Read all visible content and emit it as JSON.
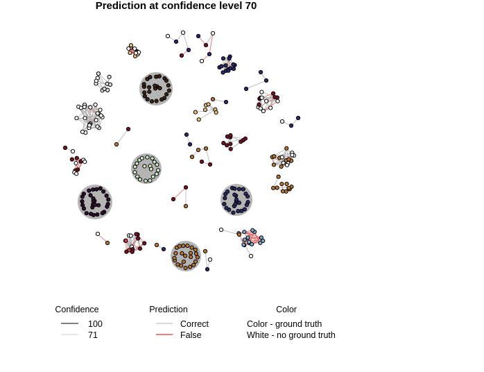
{
  "title": "Prediction at confidence level 70",
  "legend": {
    "confidence": {
      "heading": "Confidence",
      "items": [
        {
          "label": "100",
          "color": "#000000"
        },
        {
          "label": "71",
          "color": "#cccccc"
        }
      ]
    },
    "prediction": {
      "heading": "Prediction",
      "items": [
        {
          "label": "Correct",
          "color": "#b0b0b0"
        },
        {
          "label": "False",
          "color": "#cc0000"
        }
      ]
    },
    "color": {
      "heading": "Color",
      "items": [
        {
          "label": "Color - ground truth"
        },
        {
          "label": "White - no ground truth"
        }
      ]
    }
  },
  "colors": {
    "navy": "#2b2a6b",
    "brown": "#3a2415",
    "purple": "#2e0f2e",
    "crimson": "#7a0f26",
    "orange": "#b8782e",
    "tan": "#e8c17a",
    "lightgreen": "#cfe8c4",
    "lightblue": "#7fa8cc",
    "pink": "#e83a4a",
    "white": "#ffffff",
    "cluster_fill": "#b4b4b4",
    "edge_correct": "#b0b0b0",
    "edge_false": "#e06060"
  }
}
